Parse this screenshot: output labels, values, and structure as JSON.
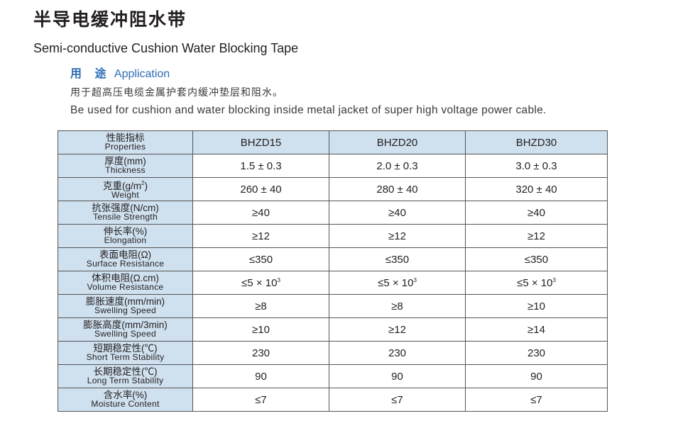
{
  "title": {
    "cn": "半导电缓冲阻水带",
    "en": "Semi-conductive Cushion Water Blocking Tape"
  },
  "application": {
    "label_cn": "用 途",
    "label_en": "Application",
    "desc_cn": "用于超高压电缆金属护套内缓冲垫层和阻水。",
    "desc_en": "Be used for cushion and water blocking inside metal jacket of super high voltage power cable."
  },
  "table": {
    "header": {
      "cn": "性能指标",
      "en": "Properties",
      "models": [
        "BHZD15",
        "BHZD20",
        "BHZD30"
      ]
    },
    "rows": [
      {
        "cn": "厚度(mm)",
        "en": "Thickness",
        "values": [
          "1.5 ± 0.3",
          "2.0 ± 0.3",
          "3.0 ± 0.3"
        ]
      },
      {
        "cn_pre": "克重(g/m",
        "cn_sup": "2",
        "cn_post": ")",
        "en": "Weight",
        "values": [
          "260 ± 40",
          "280 ± 40",
          "320 ± 40"
        ]
      },
      {
        "cn": "抗张强度(N/cm)",
        "en": "Tensile Strength",
        "values": [
          "≥40",
          "≥40",
          "≥40"
        ]
      },
      {
        "cn": "伸长率(%)",
        "en": "Elongation",
        "values": [
          "≥12",
          "≥12",
          "≥12"
        ]
      },
      {
        "cn": "表面电阻(Ω)",
        "en": "Surface Resistance",
        "values": [
          "≤350",
          "≤350",
          "≤350"
        ]
      },
      {
        "cn": "体积电阻(Ω.cm)",
        "en": "Volume Resistance",
        "values": [
          "≤5 × 10",
          "≤5 × 10",
          "≤5 × 10"
        ],
        "value_sup": "3"
      },
      {
        "cn": "膨胀速度(mm/min)",
        "en": "Swelling Speed",
        "values": [
          "≥8",
          "≥8",
          "≥10"
        ]
      },
      {
        "cn": "膨胀高度(mm/3min)",
        "en": "Swelling Speed",
        "values": [
          "≥10",
          "≥12",
          "≥14"
        ]
      },
      {
        "cn": "短期稳定性(℃)",
        "en": "Short Term Stability",
        "values": [
          "230",
          "230",
          "230"
        ]
      },
      {
        "cn": "长期稳定性(℃)",
        "en": "Long Term Stability",
        "values": [
          "90",
          "90",
          "90"
        ]
      },
      {
        "cn": "含水率(%)",
        "en": "Moisture Content",
        "values": [
          "≤7",
          "≤7",
          "≤7"
        ]
      }
    ]
  },
  "colors": {
    "header_bg": "#cfe0ee",
    "accent_blue": "#2f6db5",
    "text": "#231f20"
  }
}
